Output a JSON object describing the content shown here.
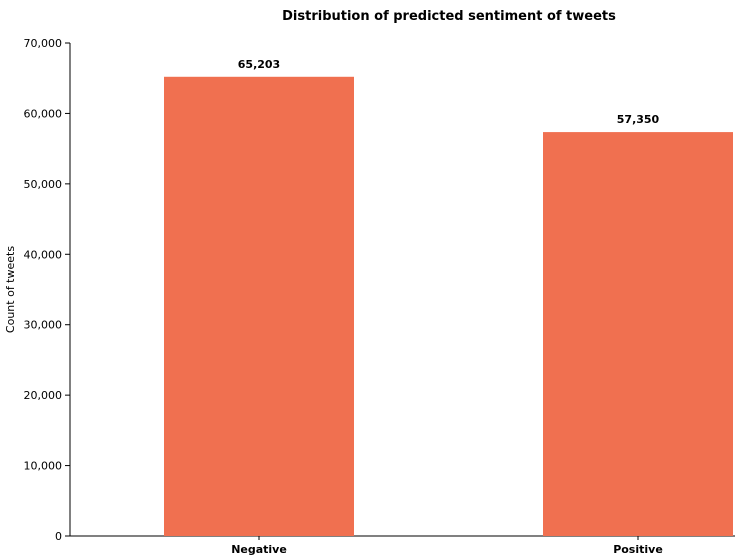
{
  "chart_data": {
    "type": "bar",
    "title": "Distribution of predicted sentiment of tweets",
    "xlabel": "",
    "ylabel": "Count of tweets",
    "categories": [
      "Negative",
      "Positive"
    ],
    "values": [
      65203,
      57350
    ],
    "value_labels": [
      "65,203",
      "57,350"
    ],
    "ylim": [
      0,
      70000
    ],
    "yticks": [
      0,
      10000,
      20000,
      30000,
      40000,
      50000,
      60000,
      70000
    ],
    "ytick_labels": [
      "0",
      "10,000",
      "20,000",
      "30,000",
      "40,000",
      "50,000",
      "60,000",
      "70,000"
    ],
    "bar_color": "#f07050",
    "grid": false,
    "legend": "none"
  }
}
